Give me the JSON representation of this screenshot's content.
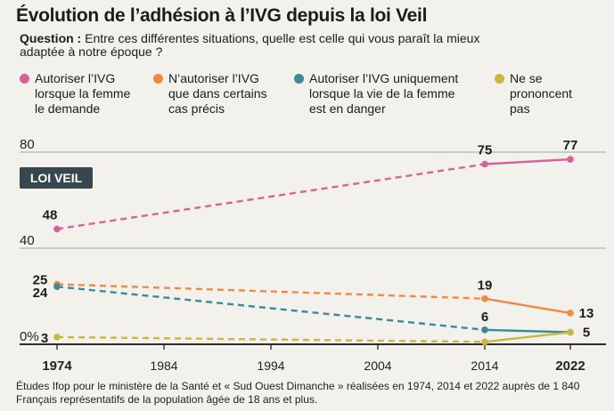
{
  "title": "Évolution de l’adhésion à l’IVG depuis la loi Veil",
  "question": {
    "label": "Question :",
    "text": "Entre ces différentes situations, quelle est celle qui vous paraît la mieux adaptée à notre époque ?"
  },
  "legend": [
    {
      "label": "Autoriser l’IVG\nlorsque la femme\nle demande",
      "color": "#d7629a"
    },
    {
      "label": "N’autoriser l’IVG\nque dans certains\ncas précis",
      "color": "#ef8a44"
    },
    {
      "label": "Autoriser l’IVG uniquement\nlorsque la vie de la femme\nest en danger",
      "color": "#3a8a98"
    },
    {
      "label": "Ne se\nprononcent\npas",
      "color": "#c9b83c"
    }
  ],
  "badge": "LOI VEIL",
  "source": "Études Ifop pour le ministère de la Santé et « Sud Ouest Dimanche » réalisées en 1974, 2014 et 2022 auprès de 1 840 Français représentatifs de la population âgée de 18 ans et plus.",
  "chart_data": {
    "type": "line",
    "x_ticks": [
      "1974",
      "1984",
      "1994",
      "2004",
      "2014",
      "2022"
    ],
    "x_ticks_bold": [
      "1974",
      "2022"
    ],
    "y_ticks": [
      "80",
      "40",
      "0%"
    ],
    "xlim": [
      1974,
      2022
    ],
    "ylim": [
      0,
      80
    ],
    "series": [
      {
        "name": "Autoriser l’IVG lorsque la femme le demande",
        "color": "#d7629a",
        "points": [
          [
            1974,
            48
          ],
          [
            2014,
            75
          ],
          [
            2022,
            77
          ]
        ],
        "labels": [
          "48",
          "75",
          "77"
        ]
      },
      {
        "name": "N’autoriser l’IVG que dans certains cas précis",
        "color": "#ef8a44",
        "points": [
          [
            1974,
            25
          ],
          [
            2014,
            19
          ],
          [
            2022,
            13
          ]
        ],
        "labels": [
          "25",
          "19",
          "13"
        ]
      },
      {
        "name": "Autoriser l’IVG uniquement lorsque la vie de la femme est en danger",
        "color": "#3a8a98",
        "points": [
          [
            1974,
            24
          ],
          [
            2014,
            6
          ],
          [
            2022,
            5
          ]
        ],
        "labels": [
          "24",
          "6",
          "5"
        ]
      },
      {
        "name": "Ne se prononcent pas",
        "color": "#c9b83c",
        "points": [
          [
            1974,
            3
          ],
          [
            2014,
            1
          ],
          [
            2022,
            5
          ]
        ],
        "labels": [
          "3",
          "",
          ""
        ]
      }
    ]
  }
}
